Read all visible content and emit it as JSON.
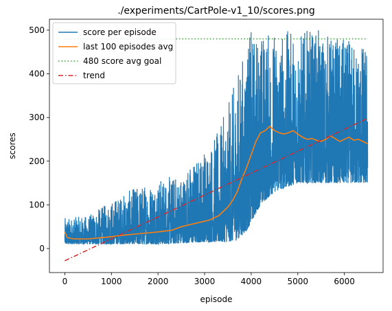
{
  "chart_data": {
    "type": "line",
    "title": "./experiments/CartPole-v1_10/scores.png",
    "xlabel": "episode",
    "ylabel": "scores",
    "xlim": [
      -330,
      6830
    ],
    "ylim": [
      -55,
      525
    ],
    "xticks": [
      0,
      1000,
      2000,
      3000,
      4000,
      5000,
      6000
    ],
    "yticks": [
      0,
      100,
      200,
      300,
      400,
      500
    ],
    "grid": false,
    "legend_position": "top-left",
    "series": [
      {
        "name": "score per episode",
        "style": "solid",
        "color": "#1f77b4",
        "x_range": [
          0,
          6500
        ],
        "envelope": [
          {
            "x": 0,
            "low": 10,
            "high": 70
          },
          {
            "x": 500,
            "low": 10,
            "high": 75
          },
          {
            "x": 1000,
            "low": 10,
            "high": 110
          },
          {
            "x": 1500,
            "low": 10,
            "high": 140
          },
          {
            "x": 2000,
            "low": 10,
            "high": 160
          },
          {
            "x": 2500,
            "low": 12,
            "high": 170
          },
          {
            "x": 3000,
            "low": 15,
            "high": 230
          },
          {
            "x": 3300,
            "low": 15,
            "high": 270
          },
          {
            "x": 3500,
            "low": 15,
            "high": 330
          },
          {
            "x": 3700,
            "low": 20,
            "high": 400
          },
          {
            "x": 3900,
            "low": 40,
            "high": 480
          },
          {
            "x": 4000,
            "low": 60,
            "high": 500
          },
          {
            "x": 4200,
            "low": 100,
            "high": 500
          },
          {
            "x": 4500,
            "low": 130,
            "high": 500
          },
          {
            "x": 5000,
            "low": 150,
            "high": 500
          },
          {
            "x": 5500,
            "low": 150,
            "high": 500
          },
          {
            "x": 6000,
            "low": 150,
            "high": 480
          },
          {
            "x": 6500,
            "low": 150,
            "high": 470
          }
        ]
      },
      {
        "name": "last 100 episodes avg",
        "style": "solid",
        "color": "#ff7f0e",
        "points": [
          [
            0,
            38
          ],
          [
            50,
            25
          ],
          [
            200,
            22
          ],
          [
            500,
            22
          ],
          [
            800,
            25
          ],
          [
            1000,
            27
          ],
          [
            1200,
            30
          ],
          [
            1500,
            33
          ],
          [
            1800,
            36
          ],
          [
            2000,
            38
          ],
          [
            2300,
            42
          ],
          [
            2500,
            50
          ],
          [
            2700,
            55
          ],
          [
            2900,
            60
          ],
          [
            3100,
            65
          ],
          [
            3300,
            75
          ],
          [
            3500,
            95
          ],
          [
            3600,
            110
          ],
          [
            3700,
            130
          ],
          [
            3800,
            160
          ],
          [
            3900,
            185
          ],
          [
            4000,
            215
          ],
          [
            4100,
            245
          ],
          [
            4200,
            265
          ],
          [
            4300,
            270
          ],
          [
            4400,
            280
          ],
          [
            4500,
            270
          ],
          [
            4600,
            265
          ],
          [
            4700,
            262
          ],
          [
            4800,
            265
          ],
          [
            4900,
            270
          ],
          [
            5000,
            262
          ],
          [
            5100,
            255
          ],
          [
            5200,
            250
          ],
          [
            5300,
            252
          ],
          [
            5400,
            248
          ],
          [
            5500,
            245
          ],
          [
            5600,
            250
          ],
          [
            5700,
            258
          ],
          [
            5800,
            252
          ],
          [
            5900,
            245
          ],
          [
            6000,
            250
          ],
          [
            6100,
            255
          ],
          [
            6200,
            248
          ],
          [
            6300,
            250
          ],
          [
            6400,
            245
          ],
          [
            6500,
            240
          ]
        ]
      },
      {
        "name": "480 score avg goal",
        "style": "dotted",
        "color": "#2ca02c",
        "points": [
          [
            0,
            480
          ],
          [
            6500,
            480
          ]
        ]
      },
      {
        "name": "trend",
        "style": "dashdot",
        "color": "#d62728",
        "points": [
          [
            0,
            -28
          ],
          [
            6500,
            298
          ]
        ]
      }
    ]
  }
}
